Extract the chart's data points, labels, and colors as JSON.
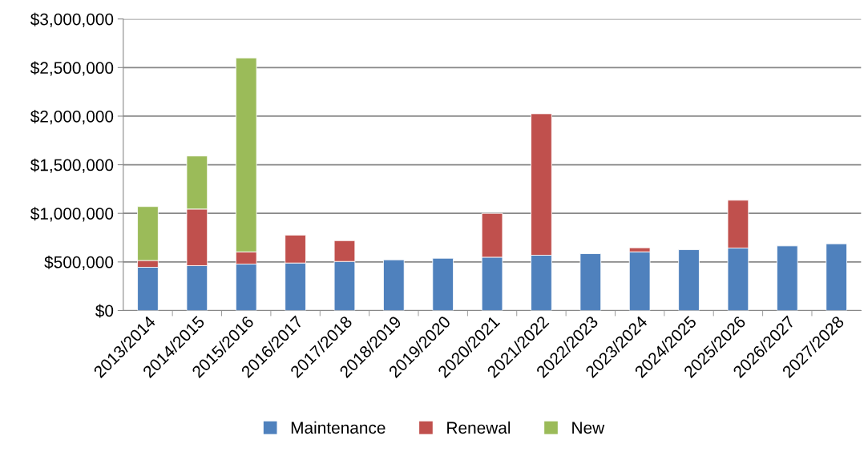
{
  "chart_data": {
    "type": "bar",
    "stacked": true,
    "categories": [
      "2013/2014",
      "2014/2015",
      "2015/2016",
      "2016/2017",
      "2017/2018",
      "2018/2019",
      "2019/2020",
      "2020/2021",
      "2021/2022",
      "2022/2023",
      "2023/2024",
      "2024/2025",
      "2025/2026",
      "2026/2027",
      "2027/2028"
    ],
    "series": [
      {
        "name": "Maintenance",
        "color": "#4f81bd",
        "values": [
          445000,
          462000,
          478000,
          489000,
          505000,
          522000,
          538000,
          549000,
          569000,
          585000,
          604000,
          626000,
          643000,
          665000,
          687000
        ]
      },
      {
        "name": "Renewal",
        "color": "#c0504d",
        "values": [
          70000,
          582000,
          126000,
          287000,
          214000,
          null,
          null,
          451000,
          1456000,
          null,
          42000,
          null,
          492000,
          null,
          null
        ]
      },
      {
        "name": "New",
        "color": "#9bbb59",
        "values": [
          555000,
          546000,
          1995000,
          null,
          null,
          null,
          null,
          null,
          null,
          null,
          null,
          null,
          null,
          null,
          null
        ]
      }
    ],
    "ylim": [
      0,
      3000000
    ],
    "yticks": [
      {
        "value": 0,
        "label": "$0"
      },
      {
        "value": 500000,
        "label": "$500,000"
      },
      {
        "value": 1000000,
        "label": "$1,000,000"
      },
      {
        "value": 1500000,
        "label": "$1,500,000"
      },
      {
        "value": 2000000,
        "label": "$2,000,000"
      },
      {
        "value": 2500000,
        "label": "$2,500,000"
      },
      {
        "value": 3000000,
        "label": "$3,000,000"
      }
    ],
    "grid": "y",
    "legend": "bottom"
  }
}
